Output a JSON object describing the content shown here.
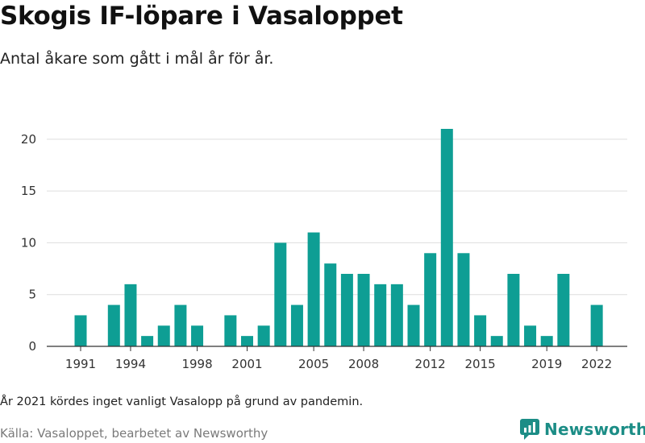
{
  "header": {
    "title": "Skogis IF-löpare i Vasaloppet",
    "subtitle": "Antal åkare som gått i mål år för år."
  },
  "footer": {
    "note": "År 2021 kördes inget vanligt Vasalopp på grund av pandemin.",
    "source": "Källa: Vasaloppet, bearbetet av Newsworthy",
    "logo_text": "Newsworthy"
  },
  "colors": {
    "bar": "#0e9e94",
    "grid": "#dddddd",
    "axis": "#333333",
    "logo": "#1c8d86"
  },
  "chart_data": {
    "type": "bar",
    "title": "Skogis IF-löpare i Vasaloppet",
    "subtitle": "Antal åkare som gått i mål år för år.",
    "xlabel": "",
    "ylabel": "",
    "ylim": [
      0,
      21
    ],
    "yticks": [
      0,
      5,
      10,
      15,
      20
    ],
    "xticks": [
      1991,
      1994,
      1998,
      2001,
      2005,
      2008,
      2012,
      2015,
      2019,
      2022
    ],
    "grid": true,
    "categories": [
      1991,
      1992,
      1993,
      1994,
      1995,
      1996,
      1997,
      1998,
      1999,
      2000,
      2001,
      2002,
      2003,
      2004,
      2005,
      2006,
      2007,
      2008,
      2009,
      2010,
      2011,
      2012,
      2013,
      2014,
      2015,
      2016,
      2017,
      2018,
      2019,
      2020,
      2021,
      2022
    ],
    "values": [
      3,
      0,
      4,
      6,
      1,
      2,
      4,
      2,
      0,
      3,
      1,
      2,
      10,
      4,
      11,
      8,
      7,
      7,
      6,
      6,
      4,
      9,
      21,
      9,
      3,
      1,
      7,
      2,
      1,
      7,
      0,
      4
    ]
  }
}
